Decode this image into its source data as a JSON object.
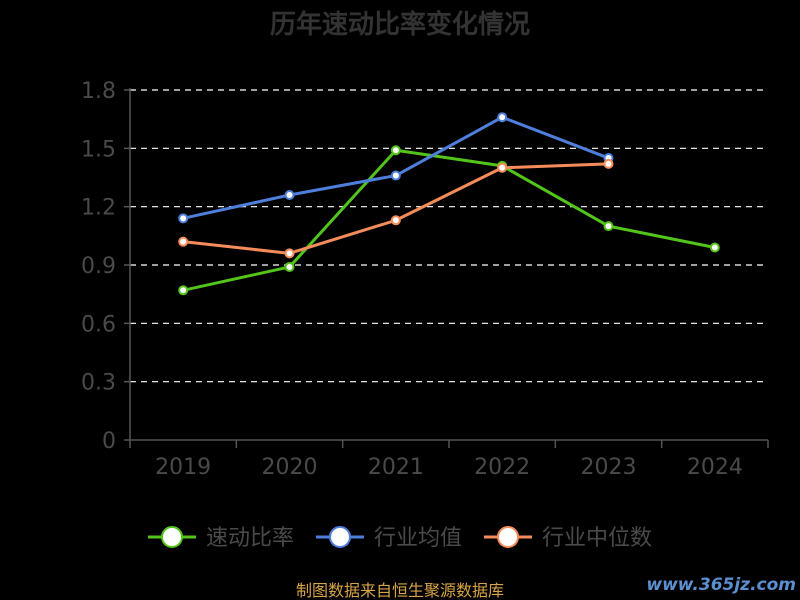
{
  "chart_data": {
    "type": "line",
    "title": "历年速动比率变化情况",
    "categories": [
      "2019",
      "2020",
      "2021",
      "2022",
      "2023",
      "2024"
    ],
    "ylim": [
      0,
      1.8
    ],
    "yticks": [
      "0",
      "0.3",
      "0.6",
      "0.9",
      "1.2",
      "1.5",
      "1.8"
    ],
    "grid": true,
    "legend_position": "bottom",
    "series": [
      {
        "name": "速动比率",
        "color": "#52c41a",
        "values": [
          0.77,
          0.89,
          1.49,
          1.41,
          1.1,
          0.99
        ]
      },
      {
        "name": "行业均值",
        "color": "#4e7fdc",
        "values": [
          1.14,
          1.26,
          1.36,
          1.66,
          1.45,
          null
        ]
      },
      {
        "name": "行业中位数",
        "color": "#f58c5a",
        "values": [
          1.02,
          0.96,
          1.13,
          1.4,
          1.42,
          null
        ]
      }
    ]
  },
  "footer": {
    "source": "制图数据来自恒生聚源数据库",
    "watermark": "www.365jz.com"
  }
}
